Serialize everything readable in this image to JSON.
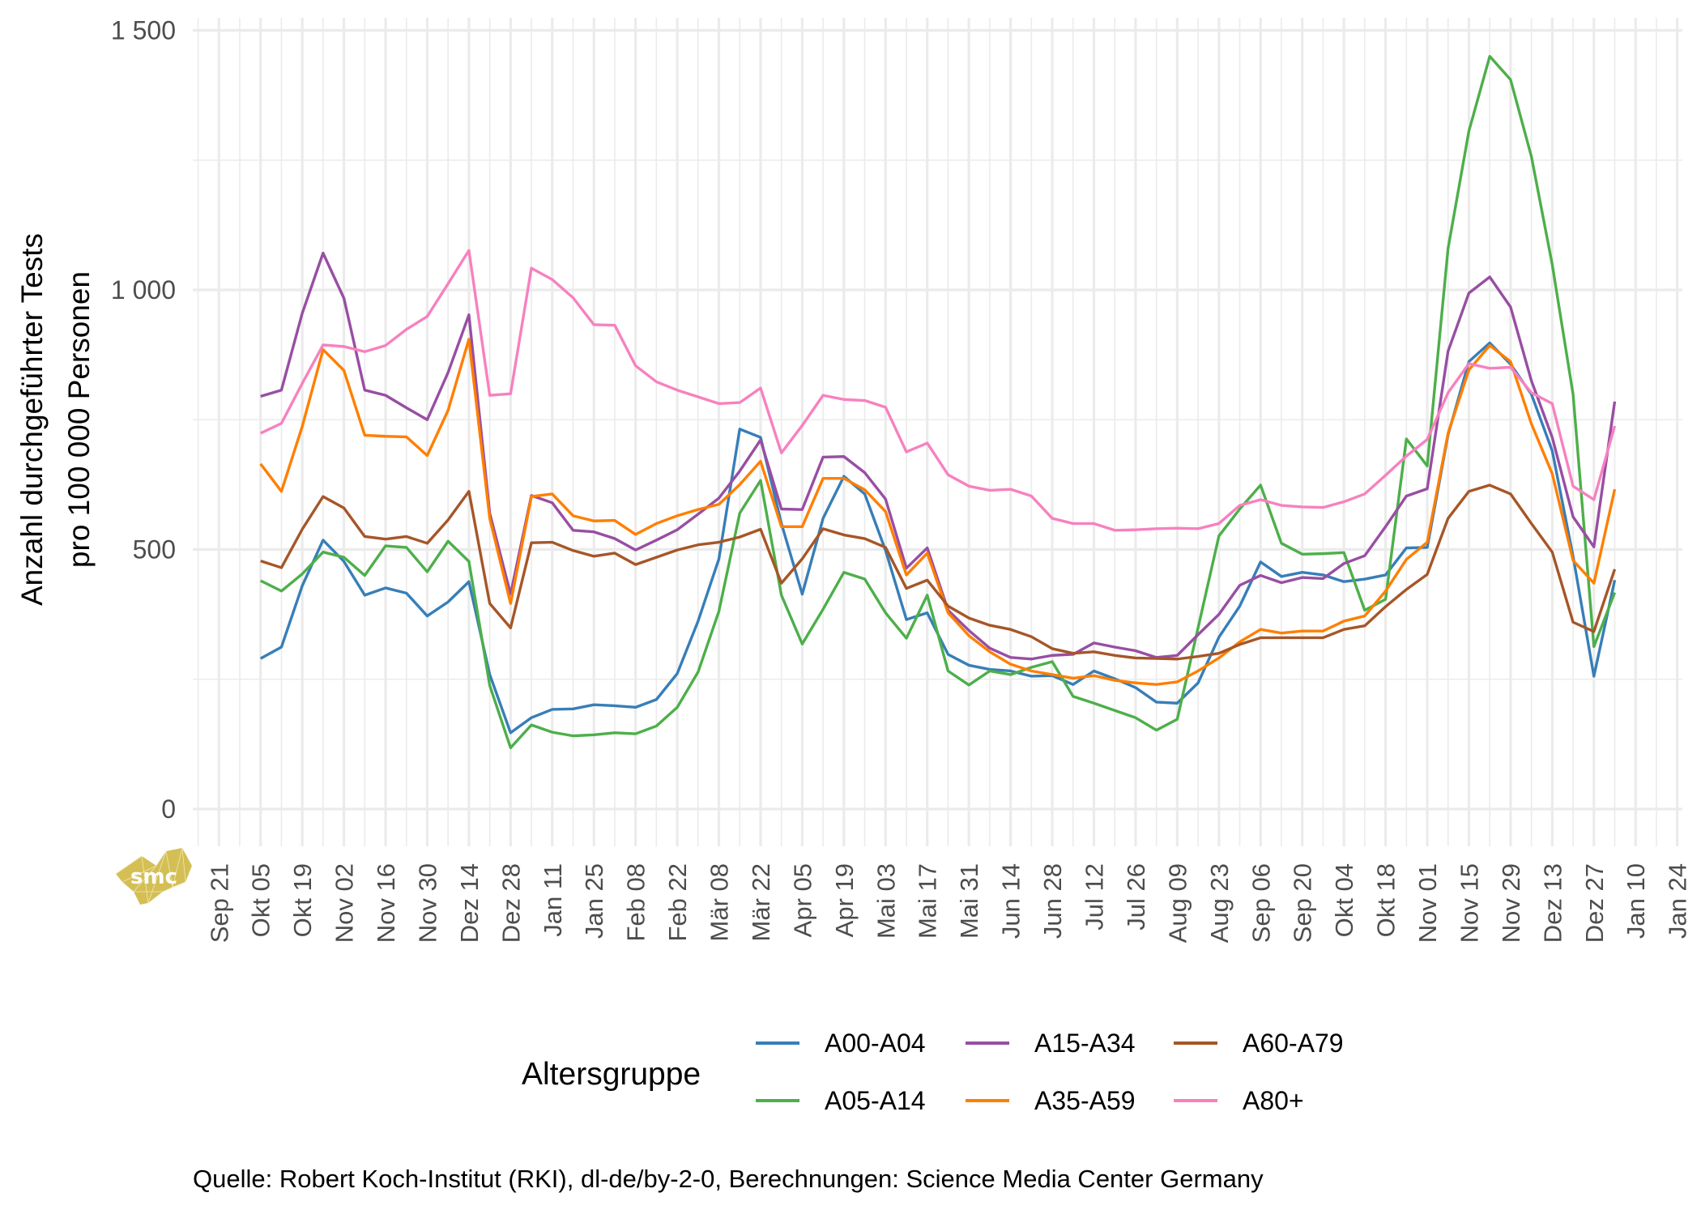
{
  "chart_data": {
    "type": "line",
    "title": "",
    "xlabel": "",
    "ylabel": "Anzahl durchgeführter Tests\npro 100 000 Personen",
    "ylabel_lines": [
      "Anzahl durchgeführter Tests",
      "pro 100 000 Personen"
    ],
    "ylim": [
      -72,
      1524
    ],
    "yticks": [
      {
        "value": 0,
        "label": "0"
      },
      {
        "value": 500,
        "label": "500"
      },
      {
        "value": 1000,
        "label": "1 000"
      },
      {
        "value": 1500,
        "label": "1 500"
      }
    ],
    "yminor": [
      250,
      750,
      1250
    ],
    "x_unit": "weeks since Okt 05",
    "xlim": [
      -3.25,
      68.25
    ],
    "xticks": [
      {
        "week": -2,
        "label": "Sep 21"
      },
      {
        "week": 0,
        "label": "Okt 05"
      },
      {
        "week": 2,
        "label": "Okt 19"
      },
      {
        "week": 4,
        "label": "Nov 02"
      },
      {
        "week": 6,
        "label": "Nov 16"
      },
      {
        "week": 8,
        "label": "Nov 30"
      },
      {
        "week": 10,
        "label": "Dez 14"
      },
      {
        "week": 12,
        "label": "Dez 28"
      },
      {
        "week": 14,
        "label": "Jan 11"
      },
      {
        "week": 16,
        "label": "Jan 25"
      },
      {
        "week": 18,
        "label": "Feb 08"
      },
      {
        "week": 20,
        "label": "Feb 22"
      },
      {
        "week": 22,
        "label": "Mär 08"
      },
      {
        "week": 24,
        "label": "Mär 22"
      },
      {
        "week": 26,
        "label": "Apr 05"
      },
      {
        "week": 28,
        "label": "Apr 19"
      },
      {
        "week": 30,
        "label": "Mai 03"
      },
      {
        "week": 32,
        "label": "Mai 17"
      },
      {
        "week": 34,
        "label": "Mai 31"
      },
      {
        "week": 36,
        "label": "Jun 14"
      },
      {
        "week": 38,
        "label": "Jun 28"
      },
      {
        "week": 40,
        "label": "Jul 12"
      },
      {
        "week": 42,
        "label": "Jul 26"
      },
      {
        "week": 44,
        "label": "Aug 09"
      },
      {
        "week": 46,
        "label": "Aug 23"
      },
      {
        "week": 48,
        "label": "Sep 06"
      },
      {
        "week": 50,
        "label": "Sep 20"
      },
      {
        "week": 52,
        "label": "Okt 04"
      },
      {
        "week": 54,
        "label": "Okt 18"
      },
      {
        "week": 56,
        "label": "Nov 01"
      },
      {
        "week": 58,
        "label": "Nov 15"
      },
      {
        "week": 60,
        "label": "Nov 29"
      },
      {
        "week": 62,
        "label": "Dez 13"
      },
      {
        "week": 64,
        "label": "Dez 27"
      },
      {
        "week": 66,
        "label": "Jan 10"
      },
      {
        "week": 68,
        "label": "Jan 24"
      }
    ],
    "grid": true,
    "legend": {
      "title": "Altersgruppe",
      "position": "bottom"
    },
    "x_start_week": 0,
    "series": [
      {
        "name": "A00-A04",
        "color": "#377eb8",
        "values": [
          290,
          312,
          430,
          518,
          477,
          412,
          426,
          416,
          372,
          399,
          438,
          259,
          147,
          176,
          192,
          193,
          201,
          199,
          196,
          211,
          261,
          362,
          482,
          732,
          716,
          550,
          414,
          560,
          641,
          607,
          498,
          365,
          378,
          298,
          277,
          269,
          266,
          256,
          257,
          240,
          266,
          251,
          234,
          206,
          204,
          243,
          331,
          391,
          476,
          448,
          456,
          451,
          438,
          443,
          451,
          503,
          504,
          721,
          862,
          898,
          857,
          799,
          690,
          487,
          256,
          441
        ]
      },
      {
        "name": "A05-A14",
        "color": "#4daf4a",
        "values": [
          440,
          420,
          453,
          495,
          485,
          450,
          507,
          504,
          457,
          516,
          477,
          238,
          118,
          162,
          148,
          141,
          143,
          147,
          145,
          160,
          196,
          264,
          381,
          570,
          633,
          412,
          318,
          385,
          456,
          443,
          378,
          329,
          412,
          266,
          239,
          266,
          259,
          273,
          284,
          217,
          204,
          190,
          176,
          152,
          173,
          349,
          526,
          578,
          624,
          512,
          491,
          492,
          494,
          383,
          404,
          713,
          661,
          1080,
          1306,
          1450,
          1405,
          1257,
          1049,
          799,
          313,
          417
        ]
      },
      {
        "name": "A15-A34",
        "color": "#984ea3",
        "values": [
          795,
          807,
          955,
          1071,
          984,
          807,
          797,
          773,
          750,
          841,
          952,
          570,
          414,
          604,
          590,
          537,
          534,
          521,
          499,
          518,
          538,
          568,
          599,
          651,
          711,
          578,
          577,
          678,
          679,
          648,
          597,
          464,
          503,
          383,
          344,
          310,
          292,
          289,
          296,
          298,
          320,
          312,
          305,
          292,
          296,
          336,
          375,
          431,
          450,
          436,
          446,
          444,
          473,
          488,
          544,
          603,
          617,
          882,
          994,
          1025,
          967,
          825,
          716,
          563,
          505,
          785
        ]
      },
      {
        "name": "A35-A59",
        "color": "#ff7f00",
        "values": [
          665,
          612,
          737,
          885,
          845,
          720,
          718,
          717,
          681,
          768,
          905,
          560,
          396,
          602,
          607,
          565,
          555,
          556,
          529,
          550,
          565,
          577,
          587,
          625,
          670,
          544,
          544,
          637,
          637,
          615,
          573,
          451,
          493,
          378,
          334,
          303,
          279,
          266,
          259,
          252,
          257,
          248,
          243,
          240,
          245,
          266,
          291,
          322,
          346,
          339,
          343,
          343,
          362,
          372,
          420,
          481,
          514,
          724,
          846,
          893,
          862,
          742,
          646,
          479,
          435,
          616
        ]
      },
      {
        "name": "A60-A79",
        "color": "#a65628",
        "values": [
          478,
          465,
          539,
          602,
          580,
          525,
          520,
          525,
          512,
          557,
          612,
          396,
          349,
          513,
          514,
          498,
          487,
          493,
          471,
          485,
          499,
          509,
          514,
          524,
          539,
          435,
          482,
          540,
          528,
          521,
          504,
          425,
          441,
          391,
          368,
          354,
          346,
          332,
          309,
          300,
          303,
          296,
          291,
          290,
          289,
          294,
          300,
          317,
          330,
          330,
          330,
          330,
          346,
          353,
          390,
          423,
          452,
          560,
          612,
          624,
          607,
          550,
          495,
          360,
          342,
          462
        ]
      },
      {
        "name": "A80+",
        "color": "#f781bf",
        "values": [
          724,
          743,
          820,
          894,
          891,
          881,
          893,
          924,
          949,
          1012,
          1076,
          797,
          800,
          1042,
          1020,
          985,
          933,
          932,
          854,
          823,
          807,
          794,
          781,
          783,
          811,
          686,
          739,
          797,
          789,
          787,
          774,
          688,
          705,
          644,
          622,
          614,
          616,
          603,
          560,
          550,
          550,
          537,
          538,
          540,
          541,
          540,
          550,
          585,
          596,
          585,
          582,
          581,
          592,
          607,
          643,
          680,
          712,
          802,
          858,
          849,
          851,
          802,
          781,
          622,
          596,
          738
        ]
      }
    ],
    "legend_layout": [
      [
        "A00-A04",
        "A15-A34",
        "A60-A79"
      ],
      [
        "A05-A14",
        "A35-A59",
        "A80+"
      ]
    ]
  },
  "caption": "Quelle: Robert Koch-Institut (RKI), dl-de/by-2-0, Berechnungen: Science Media Center Germany",
  "logo": {
    "text": "smc",
    "color": "#d4bf55"
  }
}
